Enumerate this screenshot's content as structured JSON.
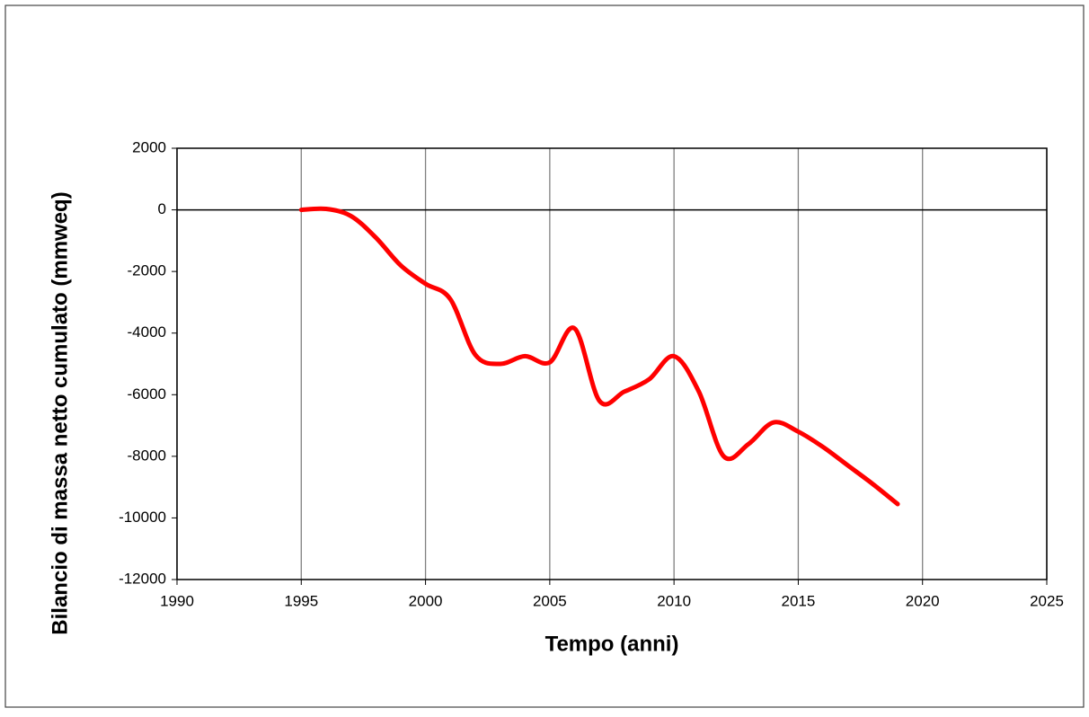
{
  "chart_data": {
    "type": "line",
    "xlabel": "Tempo (anni)",
    "ylabel": "Bilancio di massa netto cumulato (mmweq)",
    "x": [
      1995,
      1996,
      1997,
      1998,
      1999,
      2000,
      2001,
      2002,
      2003,
      2004,
      2005,
      2006,
      2007,
      2008,
      2009,
      2010,
      2011,
      2012,
      2013,
      2014,
      2015,
      2016,
      2017,
      2018,
      2019
    ],
    "series": [
      {
        "color": "#ff0000",
        "values": [
          0,
          30,
          -200,
          -900,
          -1800,
          -2400,
          -2900,
          -4700,
          -5000,
          -4750,
          -4950,
          -3850,
          -6200,
          -5900,
          -5500,
          -4750,
          -5900,
          -8000,
          -7600,
          -6900,
          -7200,
          -7700,
          -8300,
          -8900,
          -9550
        ]
      }
    ],
    "xlim": [
      1990,
      2025
    ],
    "xticks": [
      1990,
      1995,
      2000,
      2005,
      2010,
      2015,
      2020,
      2025
    ],
    "ylim": [
      -12000,
      2000
    ],
    "yticks": [
      -12000,
      -10000,
      -8000,
      -6000,
      -4000,
      -2000,
      0,
      2000
    ],
    "grid": "x"
  }
}
